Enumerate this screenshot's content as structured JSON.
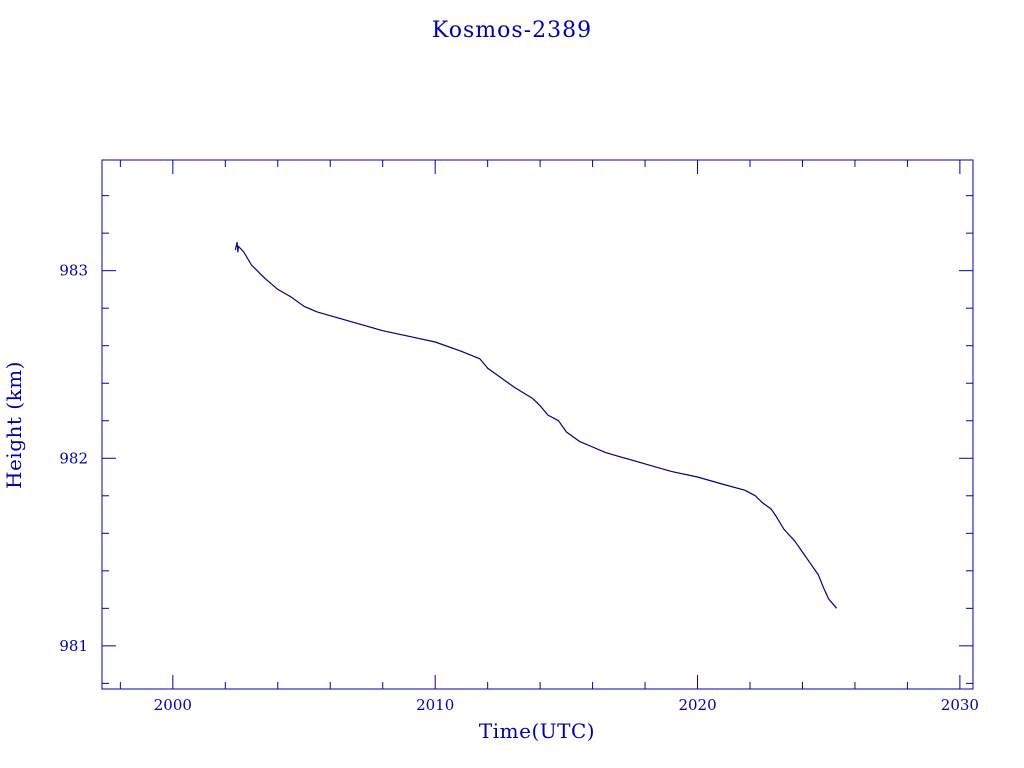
{
  "chart_data": {
    "type": "line",
    "title": "Kosmos-2389",
    "xlabel": "Time(UTC)",
    "ylabel": "Height (km)",
    "xlim": [
      1997.3,
      2030.5
    ],
    "ylim": [
      980.77,
      983.59
    ],
    "x_ticks": [
      {
        "value": 2000,
        "label": "2000"
      },
      {
        "value": 2010,
        "label": "2010"
      },
      {
        "value": 2020,
        "label": "2020"
      },
      {
        "value": 2030,
        "label": "2030"
      }
    ],
    "y_ticks": [
      {
        "value": 981,
        "label": "981"
      },
      {
        "value": 982,
        "label": "982"
      },
      {
        "value": 983,
        "label": "983"
      }
    ],
    "x_minor_step": 2,
    "y_minor_step": 0.2,
    "grid": false,
    "series": [
      {
        "color": "#000080",
        "x": [
          2002.38,
          2002.45,
          2002.48,
          2002.5,
          2002.7,
          2003.0,
          2003.5,
          2004.0,
          2004.5,
          2005.0,
          2005.5,
          2006.0,
          2007.0,
          2008.0,
          2009.0,
          2010.0,
          2011.0,
          2011.7,
          2012.0,
          2012.5,
          2013.0,
          2013.7,
          2014.0,
          2014.3,
          2014.7,
          2015.0,
          2015.5,
          2016.0,
          2016.5,
          2017.0,
          2018.0,
          2019.0,
          2020.0,
          2021.0,
          2021.8,
          2022.2,
          2022.5,
          2022.8,
          2023.0,
          2023.3,
          2023.7,
          2024.0,
          2024.3,
          2024.6,
          2024.8,
          2025.0,
          2025.3
        ],
        "y": [
          983.11,
          983.15,
          983.1,
          983.13,
          983.1,
          983.03,
          982.96,
          982.9,
          982.86,
          982.81,
          982.78,
          982.76,
          982.72,
          982.68,
          982.65,
          982.62,
          982.57,
          982.53,
          982.48,
          982.43,
          982.38,
          982.32,
          982.28,
          982.23,
          982.2,
          982.14,
          982.09,
          982.06,
          982.03,
          982.01,
          981.97,
          981.93,
          981.9,
          981.86,
          981.83,
          981.8,
          981.76,
          981.73,
          981.69,
          981.62,
          981.56,
          981.5,
          981.44,
          981.38,
          981.31,
          981.25,
          981.2
        ]
      }
    ]
  }
}
